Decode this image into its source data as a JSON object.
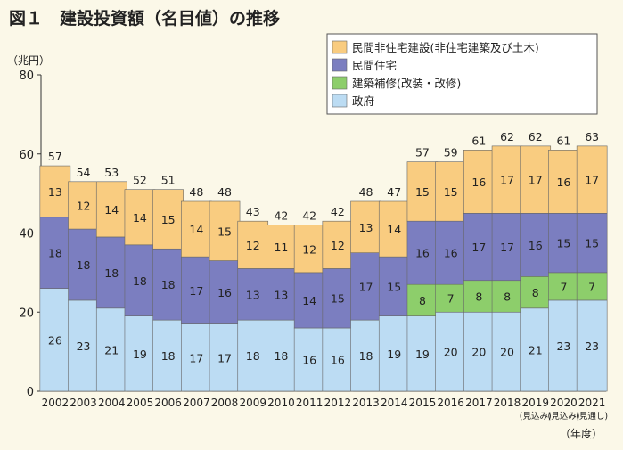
{
  "title": "図１　建設投資額（名目値）の推移",
  "chart_data": {
    "type": "bar",
    "stacked": true,
    "title": "図１　建設投資額（名目値）の推移",
    "ylabel": "（兆円）",
    "xlabel": "（年度）",
    "ylim": [
      0,
      80
    ],
    "yticks": [
      0,
      20,
      40,
      60,
      80
    ],
    "categories": [
      "2002",
      "2003",
      "2004",
      "2005",
      "2006",
      "2007",
      "2008",
      "2009",
      "2010",
      "2011",
      "2012",
      "2013",
      "2014",
      "2015",
      "2016",
      "2017",
      "2018",
      "2019",
      "2020",
      "2021"
    ],
    "category_notes": [
      "",
      "",
      "",
      "",
      "",
      "",
      "",
      "",
      "",
      "",
      "",
      "",
      "",
      "",
      "",
      "",
      "",
      "(見込み)",
      "(見込み)",
      "(見通し)"
    ],
    "series": [
      {
        "name": "政府",
        "color": "#bcdcf3",
        "values": [
          26,
          23,
          21,
          19,
          18,
          17,
          17,
          18,
          18,
          16,
          16,
          18,
          19,
          19,
          20,
          20,
          20,
          21,
          23,
          23
        ]
      },
      {
        "name": "建築補修(改装・改修)",
        "color": "#8dce6b",
        "values": [
          0,
          0,
          0,
          0,
          0,
          0,
          0,
          0,
          0,
          0,
          0,
          0,
          0,
          8,
          7,
          8,
          8,
          8,
          7,
          7
        ]
      },
      {
        "name": "民間住宅",
        "color": "#7b7ec0",
        "values": [
          18,
          18,
          18,
          18,
          18,
          17,
          16,
          13,
          13,
          14,
          15,
          17,
          15,
          16,
          16,
          17,
          17,
          16,
          15,
          15
        ]
      },
      {
        "name": "民間非住宅建設(非住宅建築及び土木)",
        "color": "#f9cc80",
        "values": [
          13,
          12,
          14,
          14,
          15,
          14,
          15,
          12,
          11,
          12,
          12,
          13,
          14,
          15,
          15,
          16,
          17,
          17,
          16,
          17
        ]
      }
    ],
    "totals": [
      57,
      54,
      53,
      52,
      51,
      48,
      48,
      43,
      42,
      42,
      42,
      48,
      47,
      57,
      59,
      61,
      62,
      62,
      61,
      63
    ],
    "legend_order": [
      "民間非住宅建設(非住宅建築及び土木)",
      "民間住宅",
      "建築補修(改装・改修)",
      "政府"
    ],
    "legend_position": "top-right",
    "grid": false
  }
}
